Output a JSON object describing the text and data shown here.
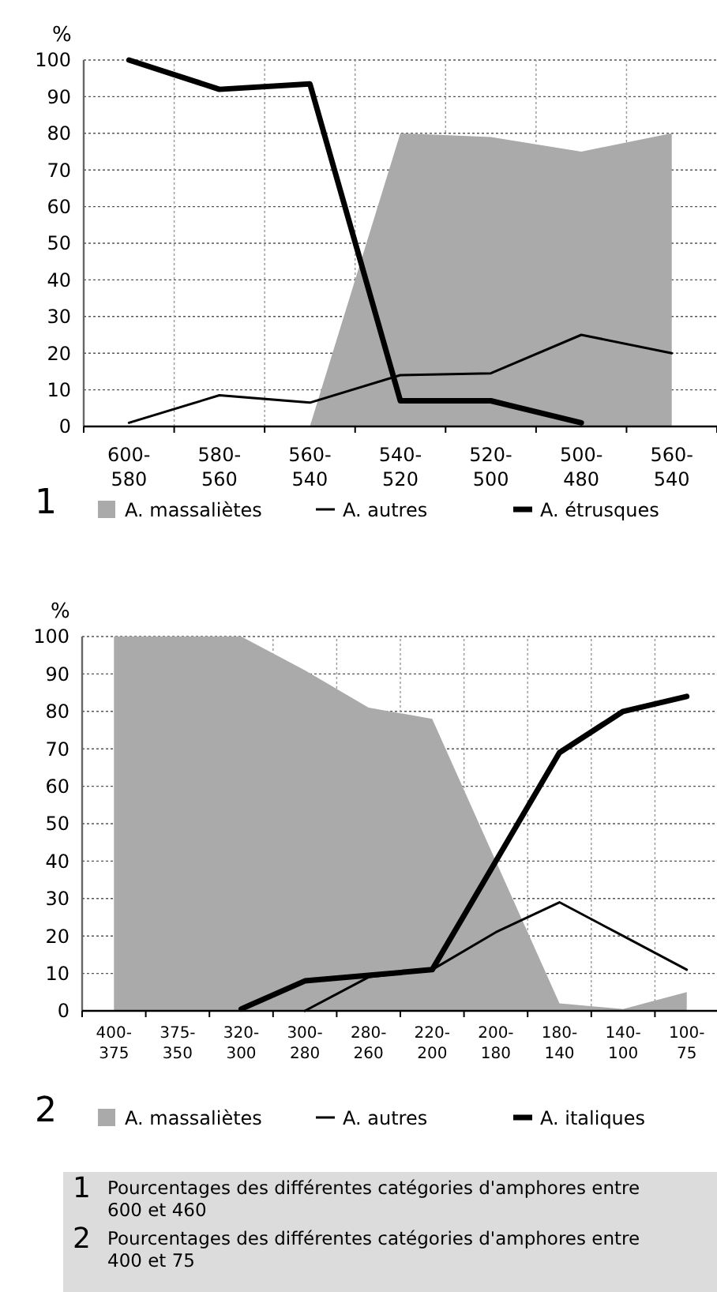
{
  "chart_data": [
    {
      "type": "line",
      "title": "1",
      "ylabel": "%",
      "categories": [
        "600-580",
        "580-560",
        "560-540",
        "540-520",
        "520-500",
        "500-480",
        "560-540"
      ],
      "ylim": [
        0,
        100
      ],
      "yticks": [
        0,
        10,
        20,
        30,
        40,
        50,
        60,
        70,
        80,
        90,
        100
      ],
      "grid": true,
      "legend": "bottom",
      "series": [
        {
          "name": "A. massaliètes",
          "type": "area",
          "color": "#aaaaaa",
          "values": [
            null,
            null,
            0,
            80,
            79,
            75,
            80
          ]
        },
        {
          "name": "A. autres",
          "type": "line",
          "color": "#000000",
          "values": [
            1,
            8.5,
            6.5,
            14,
            14.5,
            25,
            20
          ]
        },
        {
          "name": "A. étrusques",
          "type": "line",
          "color": "#000000",
          "values": [
            100,
            92,
            93.5,
            7,
            7,
            1,
            null
          ]
        }
      ],
      "annotations": [
        "Pourcentages des différentes catégories d'amphores entre 600 et 460"
      ]
    },
    {
      "type": "line",
      "title": "2",
      "ylabel": "%",
      "categories": [
        "400-375",
        "375-350",
        "320-300",
        "300-280",
        "280-260",
        "220-200",
        "200-180",
        "180-140",
        "140-100",
        "100-75"
      ],
      "ylim": [
        0,
        100
      ],
      "yticks": [
        0,
        10,
        20,
        30,
        40,
        50,
        60,
        70,
        80,
        90,
        100
      ],
      "grid": true,
      "legend": "bottom",
      "series": [
        {
          "name": "A. massaliètes",
          "type": "area",
          "color": "#aaaaaa",
          "values": [
            100,
            100,
            100,
            91,
            81,
            78,
            40,
            2,
            0.5,
            5
          ]
        },
        {
          "name": "A. autres",
          "type": "line",
          "color": "#000000",
          "values": [
            null,
            null,
            null,
            0,
            9,
            11,
            21,
            29,
            20,
            11
          ]
        },
        {
          "name": "A. italiques",
          "type": "line",
          "color": "#000000",
          "values": [
            null,
            null,
            0.5,
            8,
            9.5,
            11,
            40,
            69,
            80,
            84
          ]
        }
      ],
      "annotations": [
        "Pourcentages des différentes catégories d'amphores entre 400 et 75"
      ]
    }
  ]
}
